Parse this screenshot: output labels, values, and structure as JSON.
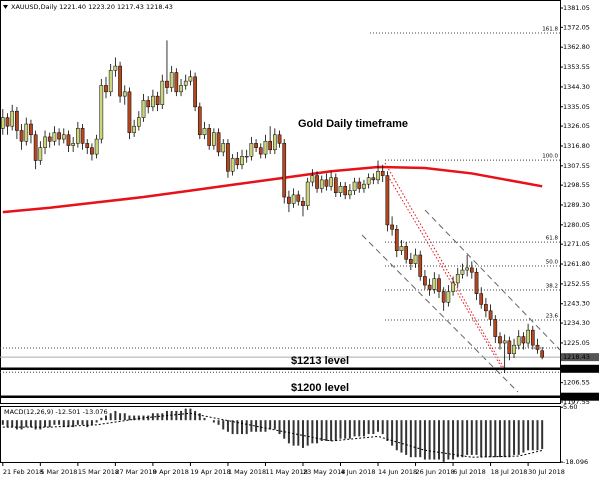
{
  "chart_data": {
    "type": "candlestick",
    "header": "XAUUSD,Daily 1221.40 1223.20 1217.43 1218.43",
    "annotations": [
      {
        "text": "Gold Daily timeframe",
        "value": 1327
      },
      {
        "text": "$1213 level",
        "value": 1216.5
      },
      {
        "text": "$1200 level",
        "value": 1204
      }
    ],
    "ohlc": [
      [
        1325,
        1334,
        1322,
        1330
      ],
      [
        1330,
        1332,
        1322,
        1326
      ],
      [
        1326,
        1336,
        1324,
        1333
      ],
      [
        1333,
        1335,
        1320,
        1324
      ],
      [
        1324,
        1327,
        1315,
        1319
      ],
      [
        1319,
        1330,
        1317,
        1327
      ],
      [
        1327,
        1329,
        1318,
        1322
      ],
      [
        1322,
        1324,
        1306,
        1310
      ],
      [
        1310,
        1319,
        1308,
        1316
      ],
      [
        1316,
        1324,
        1313,
        1321
      ],
      [
        1321,
        1323,
        1316,
        1319
      ],
      [
        1319,
        1326,
        1317,
        1323
      ],
      [
        1323,
        1325,
        1317,
        1320
      ],
      [
        1320,
        1325,
        1318,
        1322
      ],
      [
        1322,
        1324,
        1314,
        1317
      ],
      [
        1317,
        1321,
        1314,
        1318
      ],
      [
        1318,
        1328,
        1316,
        1325
      ],
      [
        1325,
        1327,
        1315,
        1318
      ],
      [
        1318,
        1320,
        1313,
        1316
      ],
      [
        1316,
        1318,
        1310,
        1313
      ],
      [
        1313,
        1322,
        1311,
        1320
      ],
      [
        1320,
        1348,
        1318,
        1345
      ],
      [
        1345,
        1349,
        1339,
        1342
      ],
      [
        1342,
        1355,
        1340,
        1352
      ],
      [
        1352,
        1358,
        1349,
        1354
      ],
      [
        1354,
        1356,
        1337,
        1340
      ],
      [
        1340,
        1345,
        1336,
        1342
      ],
      [
        1342,
        1344,
        1320,
        1323
      ],
      [
        1323,
        1329,
        1321,
        1326
      ],
      [
        1326,
        1333,
        1324,
        1330
      ],
      [
        1330,
        1341,
        1328,
        1338
      ],
      [
        1338,
        1340,
        1332,
        1335
      ],
      [
        1335,
        1343,
        1333,
        1340
      ],
      [
        1340,
        1342,
        1333,
        1336
      ],
      [
        1336,
        1350,
        1334,
        1347
      ],
      [
        1347,
        1366,
        1341,
        1344
      ],
      [
        1344,
        1354,
        1342,
        1351
      ],
      [
        1351,
        1353,
        1340,
        1342
      ],
      [
        1342,
        1348,
        1340,
        1345
      ],
      [
        1345,
        1350,
        1343,
        1347
      ],
      [
        1347,
        1352,
        1345,
        1349
      ],
      [
        1349,
        1351,
        1333,
        1335
      ],
      [
        1335,
        1337,
        1320,
        1322
      ],
      [
        1322,
        1328,
        1320,
        1325
      ],
      [
        1325,
        1327,
        1315,
        1317
      ],
      [
        1317,
        1325,
        1315,
        1323
      ],
      [
        1323,
        1325,
        1312,
        1314
      ],
      [
        1314,
        1320,
        1312,
        1318
      ],
      [
        1318,
        1320,
        1302,
        1305
      ],
      [
        1305,
        1313,
        1303,
        1311
      ],
      [
        1311,
        1314,
        1306,
        1308
      ],
      [
        1308,
        1315,
        1306,
        1312
      ],
      [
        1312,
        1315,
        1309,
        1312
      ],
      [
        1312,
        1321,
        1310,
        1318
      ],
      [
        1318,
        1320,
        1314,
        1316
      ],
      [
        1316,
        1318,
        1311,
        1313
      ],
      [
        1313,
        1322,
        1311,
        1319
      ],
      [
        1319,
        1326,
        1313,
        1315
      ],
      [
        1315,
        1325,
        1313,
        1322
      ],
      [
        1322,
        1324,
        1316,
        1318
      ],
      [
        1318,
        1320,
        1290,
        1293
      ],
      [
        1293,
        1296,
        1286,
        1290
      ],
      [
        1290,
        1297,
        1288,
        1294
      ],
      [
        1294,
        1296,
        1289,
        1291
      ],
      [
        1291,
        1293,
        1284,
        1289
      ],
      [
        1289,
        1302,
        1287,
        1300
      ],
      [
        1300,
        1306,
        1298,
        1303
      ],
      [
        1303,
        1305,
        1295,
        1297
      ],
      [
        1297,
        1303,
        1295,
        1301
      ],
      [
        1301,
        1304,
        1296,
        1298
      ],
      [
        1298,
        1305,
        1296,
        1302
      ],
      [
        1302,
        1304,
        1293,
        1295
      ],
      [
        1295,
        1300,
        1293,
        1298
      ],
      [
        1298,
        1300,
        1292,
        1294
      ],
      [
        1294,
        1299,
        1292,
        1296
      ],
      [
        1296,
        1302,
        1294,
        1300
      ],
      [
        1300,
        1302,
        1295,
        1297
      ],
      [
        1297,
        1301,
        1295,
        1299
      ],
      [
        1299,
        1304,
        1297,
        1302
      ],
      [
        1302,
        1304,
        1299,
        1301
      ],
      [
        1301,
        1310,
        1299,
        1305
      ],
      [
        1305,
        1308,
        1300,
        1303
      ],
      [
        1303,
        1305,
        1277,
        1280
      ],
      [
        1280,
        1284,
        1275,
        1278
      ],
      [
        1278,
        1280,
        1265,
        1268
      ],
      [
        1268,
        1273,
        1266,
        1270
      ],
      [
        1270,
        1272,
        1262,
        1264
      ],
      [
        1264,
        1267,
        1259,
        1262
      ],
      [
        1262,
        1269,
        1260,
        1266
      ],
      [
        1266,
        1268,
        1254,
        1256
      ],
      [
        1256,
        1259,
        1250,
        1252
      ],
      [
        1252,
        1255,
        1247,
        1250
      ],
      [
        1250,
        1258,
        1248,
        1255
      ],
      [
        1255,
        1257,
        1246,
        1249
      ],
      [
        1249,
        1251,
        1240,
        1244
      ],
      [
        1244,
        1252,
        1242,
        1249
      ],
      [
        1249,
        1256,
        1247,
        1253
      ],
      [
        1253,
        1260,
        1251,
        1257
      ],
      [
        1257,
        1262,
        1255,
        1259
      ],
      [
        1259,
        1266,
        1256,
        1260
      ],
      [
        1260,
        1263,
        1255,
        1258
      ],
      [
        1258,
        1260,
        1245,
        1248
      ],
      [
        1248,
        1251,
        1241,
        1243
      ],
      [
        1243,
        1246,
        1237,
        1240
      ],
      [
        1240,
        1243,
        1233,
        1236
      ],
      [
        1236,
        1238,
        1225,
        1228
      ],
      [
        1228,
        1230,
        1222,
        1225
      ],
      [
        1225,
        1229,
        1211,
        1226
      ],
      [
        1226,
        1228,
        1217,
        1220
      ],
      [
        1220,
        1227,
        1218,
        1224
      ],
      [
        1224,
        1231,
        1222,
        1228
      ],
      [
        1228,
        1230,
        1222,
        1225
      ],
      [
        1225,
        1234,
        1223,
        1231
      ],
      [
        1231,
        1233,
        1222,
        1224
      ],
      [
        1224,
        1227,
        1220,
        1222
      ],
      [
        1221.4,
        1223.2,
        1217.43,
        1218.43
      ]
    ],
    "up_color": "#cdd57a",
    "down_color": "#b3471f",
    "moving_average": {
      "color": "#e8111a",
      "x": [
        0,
        10,
        20,
        30,
        40,
        50,
        60,
        70,
        80,
        90,
        100,
        110,
        115
      ],
      "values": [
        1286,
        1288,
        1290.5,
        1293,
        1296,
        1299,
        1302,
        1305,
        1307,
        1306.5,
        1304,
        1300,
        1298
      ]
    },
    "xlim": [
      -0.6,
      118.8
    ],
    "xticks": [
      {
        "value": 0,
        "label": "21 Feb 2018"
      },
      {
        "value": 8,
        "label": "5 Mar 2018"
      },
      {
        "value": 16,
        "label": "15 Mar 2018"
      },
      {
        "value": 24,
        "label": "27 Mar 2018"
      },
      {
        "value": 32,
        "label": "9 Apr 2018"
      },
      {
        "value": 40,
        "label": "19 Apr 2018"
      },
      {
        "value": 48,
        "label": "1 May 2018"
      },
      {
        "value": 56,
        "label": "11 May 2018"
      },
      {
        "value": 64,
        "label": "23 May 2018"
      },
      {
        "value": 72,
        "label": "4 Jun 2018"
      },
      {
        "value": 80,
        "label": "14 Jun 2018"
      },
      {
        "value": 88,
        "label": "26 Jun 2018"
      },
      {
        "value": 96,
        "label": "6 Jul 2018"
      },
      {
        "value": 104,
        "label": "18 Jul 2018"
      },
      {
        "value": 112,
        "label": "30 Jul 2018"
      }
    ],
    "ylim": [
      1196.6,
      1384.78
    ],
    "yticks": [
      1381.05,
      1372.05,
      {
        "value": 1362.8,
        "label": "1362.80"
      },
      1353.55,
      {
        "value": 1344.3,
        "label": "1344.30"
      },
      1335.05,
      1326.05,
      {
        "value": 1316.8,
        "label": "1316.80"
      },
      1307.55,
      1298.55,
      {
        "value": 1289.3,
        "label": "1289.30"
      },
      1280.05,
      1271.05,
      {
        "value": 1261.8,
        "label": "1261.80"
      },
      1252.55,
      {
        "value": 1243.3,
        "label": "1243.30"
      },
      {
        "value": 1234.3,
        "label": "1234.30"
      },
      1225.05,
      1206.55,
      1197.55
    ],
    "fib_levels": [
      {
        "label": "161.8",
        "value": 1369.4
      },
      {
        "label": "100.0",
        "value": 1310.2
      },
      {
        "label": "61.8",
        "value": 1272
      },
      {
        "label": "50.0",
        "value": 1260.9
      },
      {
        "label": "38.2",
        "value": 1249.7
      },
      {
        "label": "23.6",
        "value": 1235.7
      }
    ],
    "dotted_lines": [
      1222.7,
      1211.4
    ],
    "levels": [
      {
        "value": 1213,
        "label": "1213.00"
      },
      {
        "value": 1200,
        "label": "1200.00"
      }
    ],
    "current_price": {
      "value": 1218.43,
      "label": "1218.43"
    },
    "macd": {
      "label": "MACD(12,26,9) -12.501 -13.076",
      "histogram": [
        -2,
        -3,
        -3,
        -4,
        -4,
        -3,
        -3,
        -4,
        -4,
        -3,
        -3,
        -2,
        -2,
        -3,
        -3,
        -3,
        -2,
        -2,
        -3,
        -2,
        -1,
        1,
        2,
        3,
        4,
        3,
        3,
        2,
        2,
        2,
        2,
        2,
        3,
        3,
        3,
        4,
        4,
        4,
        4,
        5,
        5,
        4,
        3,
        1,
        0,
        -1,
        -2,
        -4,
        -5,
        -6,
        -6,
        -6,
        -6,
        -5,
        -5,
        -5,
        -5,
        -4,
        -4,
        -6,
        -8,
        -10,
        -11,
        -11,
        -12,
        -11,
        -10,
        -10,
        -9,
        -9,
        -9,
        -9,
        -8,
        -8,
        -8,
        -7,
        -7,
        -7,
        -6,
        -6,
        -5,
        -6,
        -9,
        -11,
        -13,
        -14,
        -15,
        -16,
        -16,
        -16,
        -17,
        -17,
        -17,
        -17,
        -18,
        -17,
        -17,
        -16,
        -16,
        -15,
        -15,
        -15,
        -16,
        -16,
        -16,
        -16,
        -16,
        -16,
        -16,
        -15,
        -15,
        -14,
        -13,
        -13,
        -13,
        -12.501
      ],
      "signal": {
        "x": [
          0,
          10,
          20,
          30,
          40,
          50,
          60,
          70,
          80,
          90,
          100,
          110,
          115
        ],
        "values": [
          -3,
          -3,
          -2,
          1,
          3,
          -1,
          -5,
          -9,
          -7,
          -13,
          -16,
          -15.5,
          -13.076
        ]
      },
      "ylim": [
        -18.5,
        5.7
      ],
      "yticks": [
        {
          "value": 5.6,
          "label": "5.60"
        },
        {
          "value": -18.096,
          "label": "-18.096"
        }
      ]
    }
  }
}
